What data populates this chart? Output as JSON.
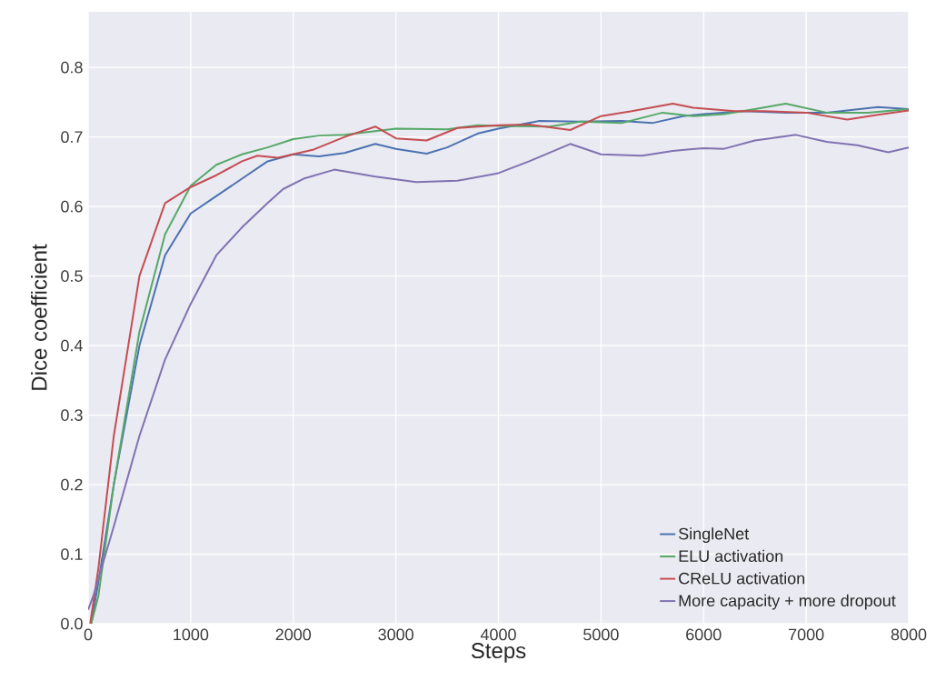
{
  "chart_data": {
    "type": "line",
    "xlabel": "Steps",
    "ylabel": "Dice coefficient",
    "xlim": [
      0,
      8000
    ],
    "ylim": [
      0,
      0.88
    ],
    "xticks": [
      0,
      1000,
      2000,
      3000,
      4000,
      5000,
      6000,
      7000,
      8000
    ],
    "yticks": [
      {
        "value": 0,
        "label": "0.0"
      },
      0.1,
      0.2,
      0.3,
      0.4,
      0.5,
      0.6,
      0.7,
      0.8
    ],
    "grid": true,
    "legend": "bottom right",
    "marker": "none",
    "line_style": "solid",
    "series": [
      {
        "name": "SingleNet",
        "color": "#4c72b0",
        "x": [
          30,
          100,
          250,
          500,
          750,
          1000,
          1250,
          1500,
          1750,
          2000,
          2250,
          2500,
          2800,
          3000,
          3300,
          3500,
          3800,
          4000,
          4400,
          4800,
          5200,
          5500,
          5800,
          6000,
          6400,
          6800,
          7200,
          7700,
          8000
        ],
        "values": [
          0,
          0.06,
          0.2,
          0.4,
          0.53,
          0.59,
          0.615,
          0.64,
          0.665,
          0.675,
          0.672,
          0.677,
          0.69,
          0.683,
          0.676,
          0.685,
          0.705,
          0.712,
          0.723,
          0.722,
          0.723,
          0.72,
          0.73,
          0.733,
          0.737,
          0.735,
          0.735,
          0.743,
          0.74
        ]
      },
      {
        "name": "ELU activation",
        "color": "#55a868",
        "x": [
          30,
          100,
          250,
          500,
          750,
          1000,
          1250,
          1500,
          1750,
          2000,
          2250,
          2500,
          3000,
          3500,
          3800,
          4000,
          4500,
          4800,
          5200,
          5600,
          5900,
          6200,
          6500,
          6800,
          7200,
          7600,
          8000
        ],
        "values": [
          0,
          0.04,
          0.2,
          0.42,
          0.56,
          0.63,
          0.66,
          0.675,
          0.685,
          0.697,
          0.702,
          0.703,
          0.712,
          0.711,
          0.717,
          0.716,
          0.715,
          0.722,
          0.72,
          0.735,
          0.73,
          0.733,
          0.74,
          0.748,
          0.735,
          0.735,
          0.74
        ]
      },
      {
        "name": "CReLU activation",
        "color": "#c44e52",
        "x": [
          20,
          100,
          250,
          500,
          750,
          1000,
          1250,
          1500,
          1650,
          1850,
          2200,
          2500,
          2800,
          3000,
          3300,
          3600,
          4000,
          4300,
          4700,
          5000,
          5300,
          5700,
          5900,
          6300,
          6600,
          7000,
          7400,
          7700,
          8000
        ],
        "values": [
          0,
          0.08,
          0.27,
          0.5,
          0.605,
          0.628,
          0.645,
          0.665,
          0.673,
          0.67,
          0.682,
          0.7,
          0.715,
          0.698,
          0.695,
          0.713,
          0.717,
          0.718,
          0.71,
          0.73,
          0.737,
          0.748,
          0.742,
          0.737,
          0.737,
          0.735,
          0.725,
          0.732,
          0.738
        ]
      },
      {
        "name": "More capacity + more dropout",
        "color": "#8172b2",
        "x": [
          0,
          50,
          250,
          500,
          750,
          1000,
          1250,
          1500,
          1750,
          1900,
          2100,
          2400,
          2800,
          3200,
          3600,
          4000,
          4300,
          4700,
          5000,
          5400,
          5700,
          6000,
          6200,
          6500,
          6900,
          7200,
          7500,
          7800,
          8000
        ],
        "values": [
          0.02,
          0.04,
          0.14,
          0.27,
          0.38,
          0.46,
          0.53,
          0.57,
          0.605,
          0.625,
          0.64,
          0.653,
          0.643,
          0.635,
          0.637,
          0.648,
          0.665,
          0.69,
          0.675,
          0.673,
          0.68,
          0.684,
          0.683,
          0.695,
          0.703,
          0.693,
          0.688,
          0.678,
          0.685
        ]
      }
    ]
  }
}
